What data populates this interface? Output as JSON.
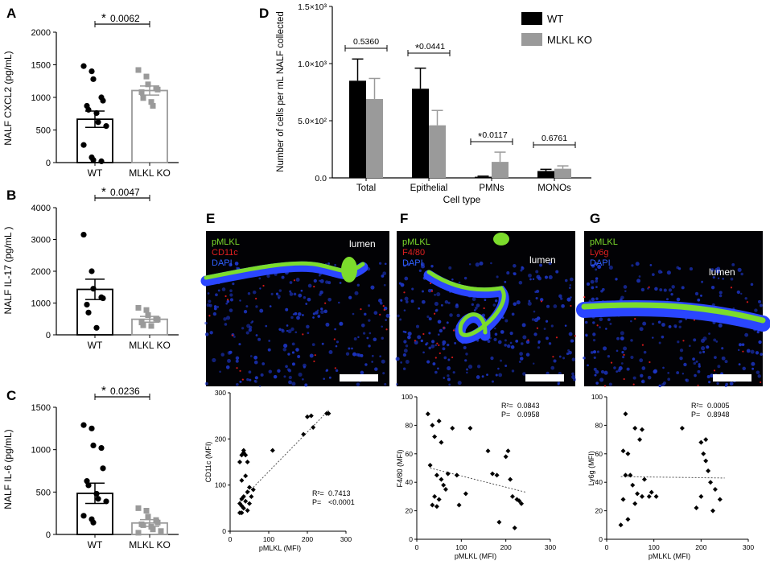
{
  "chart_data": [
    {
      "panel": "A",
      "type": "bar",
      "ylabel": "NALF CXCL2 (pg/mL)",
      "ylim": [
        0,
        2000
      ],
      "yticks": [
        "0",
        "500",
        "1000",
        "1500",
        "2000"
      ],
      "categories": [
        "WT",
        "MLKL KO"
      ],
      "values": [
        665,
        1105
      ],
      "sem": [
        125,
        70
      ],
      "points": [
        [
          1480,
          1400,
          1280,
          1000,
          950,
          870,
          810,
          760,
          620,
          560,
          270,
          80,
          40,
          20
        ],
        [
          1420,
          1320,
          1200,
          1140,
          1120,
          1080,
          990,
          930,
          870
        ]
      ],
      "annotation": {
        "star": "*",
        "p": "0.0062"
      }
    },
    {
      "panel": "B",
      "type": "bar",
      "ylabel": "NALF IL-17 (pg/mL )",
      "ylim": [
        0,
        4000
      ],
      "yticks": [
        "0",
        "1000",
        "2000",
        "3000",
        "4000"
      ],
      "categories": [
        "WT",
        "MLKL KO"
      ],
      "values": [
        1430,
        490
      ],
      "sem": [
        320,
        90
      ],
      "points": [
        [
          3150,
          2000,
          1450,
          1180,
          1150,
          950,
          700,
          220
        ],
        [
          850,
          780,
          620,
          510,
          480,
          390,
          300,
          280
        ]
      ],
      "annotation": {
        "star": "*",
        "p": "0.0047"
      }
    },
    {
      "panel": "C",
      "type": "bar",
      "ylabel": "NALF IL-6 (pg/mL)",
      "ylim": [
        0,
        1500
      ],
      "yticks": [
        "0",
        "500",
        "1000",
        "1500"
      ],
      "categories": [
        "WT",
        "MLKL KO"
      ],
      "values": [
        485,
        135
      ],
      "sem": [
        120,
        40
      ],
      "points": [
        [
          1290,
          1250,
          1050,
          1020,
          780,
          630,
          580,
          480,
          420,
          390,
          220,
          180,
          140
        ],
        [
          310,
          280,
          210,
          170,
          140,
          120,
          110,
          90,
          60,
          40,
          20
        ]
      ],
      "annotation": {
        "star": "*",
        "p": "0.0236"
      }
    },
    {
      "panel": "D",
      "type": "bar",
      "xlabel": "Cell type",
      "ylabel": "Number of cells per mL NALF collected",
      "ylim": [
        0,
        1500
      ],
      "yticks": [
        "0.0",
        "5.0×10²",
        "1.0×10³",
        "1.5×10³"
      ],
      "categories": [
        "Total",
        "Epithelial",
        "PMNs",
        "MONOs"
      ],
      "series": [
        {
          "name": "WT",
          "color": "#000000",
          "values": [
            850,
            780,
            10,
            60
          ],
          "err": [
            190,
            180,
            5,
            15
          ]
        },
        {
          "name": "MLKL KO",
          "color": "#9a9a9a",
          "values": [
            690,
            460,
            140,
            80
          ],
          "err": [
            180,
            130,
            85,
            25
          ]
        }
      ],
      "annotations": [
        {
          "star": "",
          "p": "0.5360"
        },
        {
          "star": "*",
          "p": "0.0441"
        },
        {
          "star": "*",
          "p": "0.0117"
        },
        {
          "star": "",
          "p": "0.6761"
        }
      ]
    },
    {
      "panel": "E",
      "type": "scatter",
      "xlabel": "pMLKL (MFI)",
      "ylabel": "CD11c (MFI)",
      "xlim": [
        0,
        300
      ],
      "ylim": [
        0,
        300
      ],
      "xticks": [
        "0",
        "100",
        "200",
        "300"
      ],
      "yticks": [
        "0",
        "100",
        "200",
        "300"
      ],
      "stats": {
        "r2_label": "R²=",
        "r2": "0.7413",
        "p_label": "P=",
        "p": "<0.0001"
      },
      "trend": [
        [
          25,
          65
        ],
        [
          255,
          262
        ]
      ],
      "points": [
        [
          255,
          255
        ],
        [
          250,
          255
        ],
        [
          215,
          225
        ],
        [
          210,
          250
        ],
        [
          200,
          248
        ],
        [
          190,
          210
        ],
        [
          110,
          175
        ],
        [
          60,
          90
        ],
        [
          45,
          150
        ],
        [
          40,
          165
        ],
        [
          35,
          175
        ],
        [
          35,
          170
        ],
        [
          30,
          165
        ],
        [
          25,
          150
        ],
        [
          50,
          95
        ],
        [
          40,
          120
        ],
        [
          30,
          110
        ],
        [
          45,
          85
        ],
        [
          55,
          75
        ],
        [
          35,
          75
        ],
        [
          30,
          70
        ],
        [
          40,
          65
        ],
        [
          25,
          60
        ],
        [
          30,
          55
        ],
        [
          35,
          50
        ],
        [
          45,
          45
        ],
        [
          25,
          40
        ],
        [
          30,
          40
        ],
        [
          50,
          60
        ]
      ]
    },
    {
      "panel": "F",
      "type": "scatter",
      "xlabel": "pMLKL (MFI)",
      "ylabel": "F4/80 (MFI)",
      "xlim": [
        0,
        300
      ],
      "ylim": [
        0,
        100
      ],
      "xticks": [
        "0",
        "100",
        "200",
        "300"
      ],
      "yticks": [
        "0",
        "20",
        "40",
        "60",
        "80",
        "100"
      ],
      "stats": {
        "r2_label": "R²=",
        "r2": "0.0843",
        "p_label": "P=",
        "p": "0.0958"
      },
      "trend": [
        [
          30,
          50
        ],
        [
          245,
          33
        ]
      ],
      "points": [
        [
          25,
          88
        ],
        [
          35,
          80
        ],
        [
          40,
          72
        ],
        [
          50,
          83
        ],
        [
          55,
          68
        ],
        [
          80,
          78
        ],
        [
          30,
          52
        ],
        [
          45,
          45
        ],
        [
          55,
          42
        ],
        [
          60,
          38
        ],
        [
          65,
          35
        ],
        [
          40,
          30
        ],
        [
          50,
          28
        ],
        [
          35,
          24
        ],
        [
          45,
          23
        ],
        [
          70,
          46
        ],
        [
          90,
          45
        ],
        [
          95,
          24
        ],
        [
          120,
          78
        ],
        [
          160,
          62
        ],
        [
          170,
          46
        ],
        [
          180,
          45
        ],
        [
          185,
          12
        ],
        [
          200,
          58
        ],
        [
          205,
          62
        ],
        [
          210,
          42
        ],
        [
          215,
          30
        ],
        [
          225,
          28
        ],
        [
          235,
          25
        ],
        [
          220,
          8
        ],
        [
          230,
          27
        ],
        [
          110,
          32
        ]
      ]
    },
    {
      "panel": "G",
      "type": "scatter",
      "xlabel": "pMLKL (MFI)",
      "ylabel": "Ly6g (MFI)",
      "xlim": [
        0,
        300
      ],
      "ylim": [
        0,
        100
      ],
      "xticks": [
        "0",
        "100",
        "200",
        "300"
      ],
      "yticks": [
        "0",
        "20",
        "40",
        "60",
        "80",
        "100"
      ],
      "stats": {
        "r2_label": "R²=",
        "r2": "0.0005",
        "p_label": "P=",
        "p": "0.8948"
      },
      "trend": [
        [
          30,
          44
        ],
        [
          250,
          43
        ]
      ],
      "points": [
        [
          40,
          88
        ],
        [
          35,
          62
        ],
        [
          45,
          60
        ],
        [
          60,
          78
        ],
        [
          70,
          70
        ],
        [
          75,
          77
        ],
        [
          40,
          45
        ],
        [
          50,
          45
        ],
        [
          55,
          38
        ],
        [
          35,
          28
        ],
        [
          60,
          25
        ],
        [
          65,
          32
        ],
        [
          75,
          30
        ],
        [
          80,
          42
        ],
        [
          90,
          30
        ],
        [
          95,
          33
        ],
        [
          105,
          30
        ],
        [
          45,
          14
        ],
        [
          30,
          10
        ],
        [
          160,
          78
        ],
        [
          200,
          68
        ],
        [
          205,
          60
        ],
        [
          210,
          55
        ],
        [
          215,
          48
        ],
        [
          220,
          40
        ],
        [
          230,
          35
        ],
        [
          200,
          30
        ],
        [
          190,
          22
        ],
        [
          225,
          20
        ],
        [
          240,
          28
        ],
        [
          210,
          70
        ]
      ]
    }
  ],
  "micrographs": [
    {
      "panel": "E",
      "stain_labels": [
        {
          "text": "pMLKL",
          "color": "#7cdc2c"
        },
        {
          "text": "CD11c",
          "color": "#e02020"
        },
        {
          "text": "DAPI",
          "color": "#3060ff"
        }
      ],
      "region_label": "lumen"
    },
    {
      "panel": "F",
      "stain_labels": [
        {
          "text": "pMLKL",
          "color": "#7cdc2c"
        },
        {
          "text": "F4/80",
          "color": "#e02020"
        },
        {
          "text": "DAPI",
          "color": "#3060ff"
        }
      ],
      "region_label": "lumen"
    },
    {
      "panel": "G",
      "stain_labels": [
        {
          "text": "pMLKL",
          "color": "#7cdc2c"
        },
        {
          "text": "Ly6g",
          "color": "#e02020"
        },
        {
          "text": "DAPI",
          "color": "#3060ff"
        }
      ],
      "region_label": "lumen"
    }
  ],
  "colors": {
    "ko_gray": "#9a9a9a",
    "wt_black": "#000000"
  }
}
